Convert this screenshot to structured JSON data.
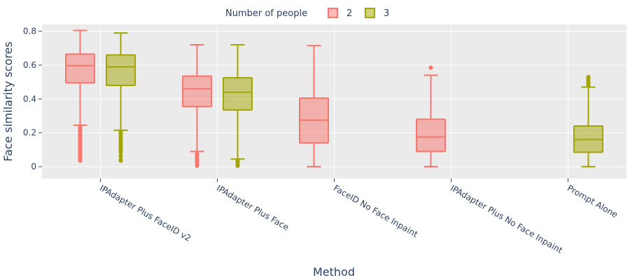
{
  "chart_data": {
    "type": "box",
    "xlabel": "Method",
    "ylabel": "Face similarity scores",
    "ylim": [
      -0.07,
      0.84
    ],
    "yticks": [
      0,
      0.2,
      0.4,
      0.6,
      0.8
    ],
    "ytick_labels": [
      "0",
      "0.2",
      "0.4",
      "0.6",
      "0.8"
    ],
    "grid": true,
    "legend": {
      "title": "Number of people",
      "placement": "top-center"
    },
    "categories": [
      "IPAdapter Plus FaceID v2",
      "IPAdapter Plus Face",
      "FaceID No Face Inpaint",
      "IPAdapter Plus No Face Inpaint",
      "Prompt Alone"
    ],
    "series": [
      {
        "name": "2",
        "color": "#F8766D",
        "boxes": [
          {
            "category": "IPAdapter Plus FaceID v2",
            "min": 0.245,
            "q1": 0.495,
            "median": 0.597,
            "q3": 0.665,
            "max": 0.805,
            "outliers": [
              0.035,
              0.045,
              0.055,
              0.065,
              0.075,
              0.085,
              0.095,
              0.105,
              0.115,
              0.125,
              0.135,
              0.145,
              0.155,
              0.165,
              0.175,
              0.185,
              0.195,
              0.205,
              0.215,
              0.225,
              0.235
            ]
          },
          {
            "category": "IPAdapter Plus Face",
            "min": 0.09,
            "q1": 0.355,
            "median": 0.46,
            "q3": 0.535,
            "max": 0.72,
            "outliers": [
              0.005,
              0.012,
              0.02,
              0.028,
              0.036,
              0.044,
              0.052,
              0.06,
              0.068,
              0.076
            ]
          },
          {
            "category": "FaceID No Face Inpaint",
            "min": 0.0,
            "q1": 0.14,
            "median": 0.275,
            "q3": 0.405,
            "max": 0.715,
            "outliers": []
          },
          {
            "category": "IPAdapter Plus No Face Inpaint",
            "min": 0.0,
            "q1": 0.09,
            "median": 0.175,
            "q3": 0.28,
            "max": 0.54,
            "outliers": [
              0.585
            ]
          }
        ]
      },
      {
        "name": "3",
        "color": "#A3A500",
        "boxes": [
          {
            "category": "IPAdapter Plus FaceID v2",
            "min": 0.215,
            "q1": 0.48,
            "median": 0.59,
            "q3": 0.66,
            "max": 0.79,
            "outliers": [
              0.035,
              0.045,
              0.065,
              0.085,
              0.095,
              0.105,
              0.115,
              0.125,
              0.135,
              0.145,
              0.155,
              0.165,
              0.175,
              0.185,
              0.195,
              0.205
            ]
          },
          {
            "category": "IPAdapter Plus Face",
            "min": 0.045,
            "q1": 0.335,
            "median": 0.44,
            "q3": 0.525,
            "max": 0.72,
            "outliers": [
              0.005,
              0.012,
              0.02,
              0.028,
              0.036
            ]
          },
          {
            "category": "Prompt Alone",
            "min": 0.0,
            "q1": 0.085,
            "median": 0.16,
            "q3": 0.24,
            "max": 0.47,
            "outliers": [
              0.48,
              0.49,
              0.5,
              0.51,
              0.52,
              0.53
            ]
          }
        ]
      }
    ]
  }
}
